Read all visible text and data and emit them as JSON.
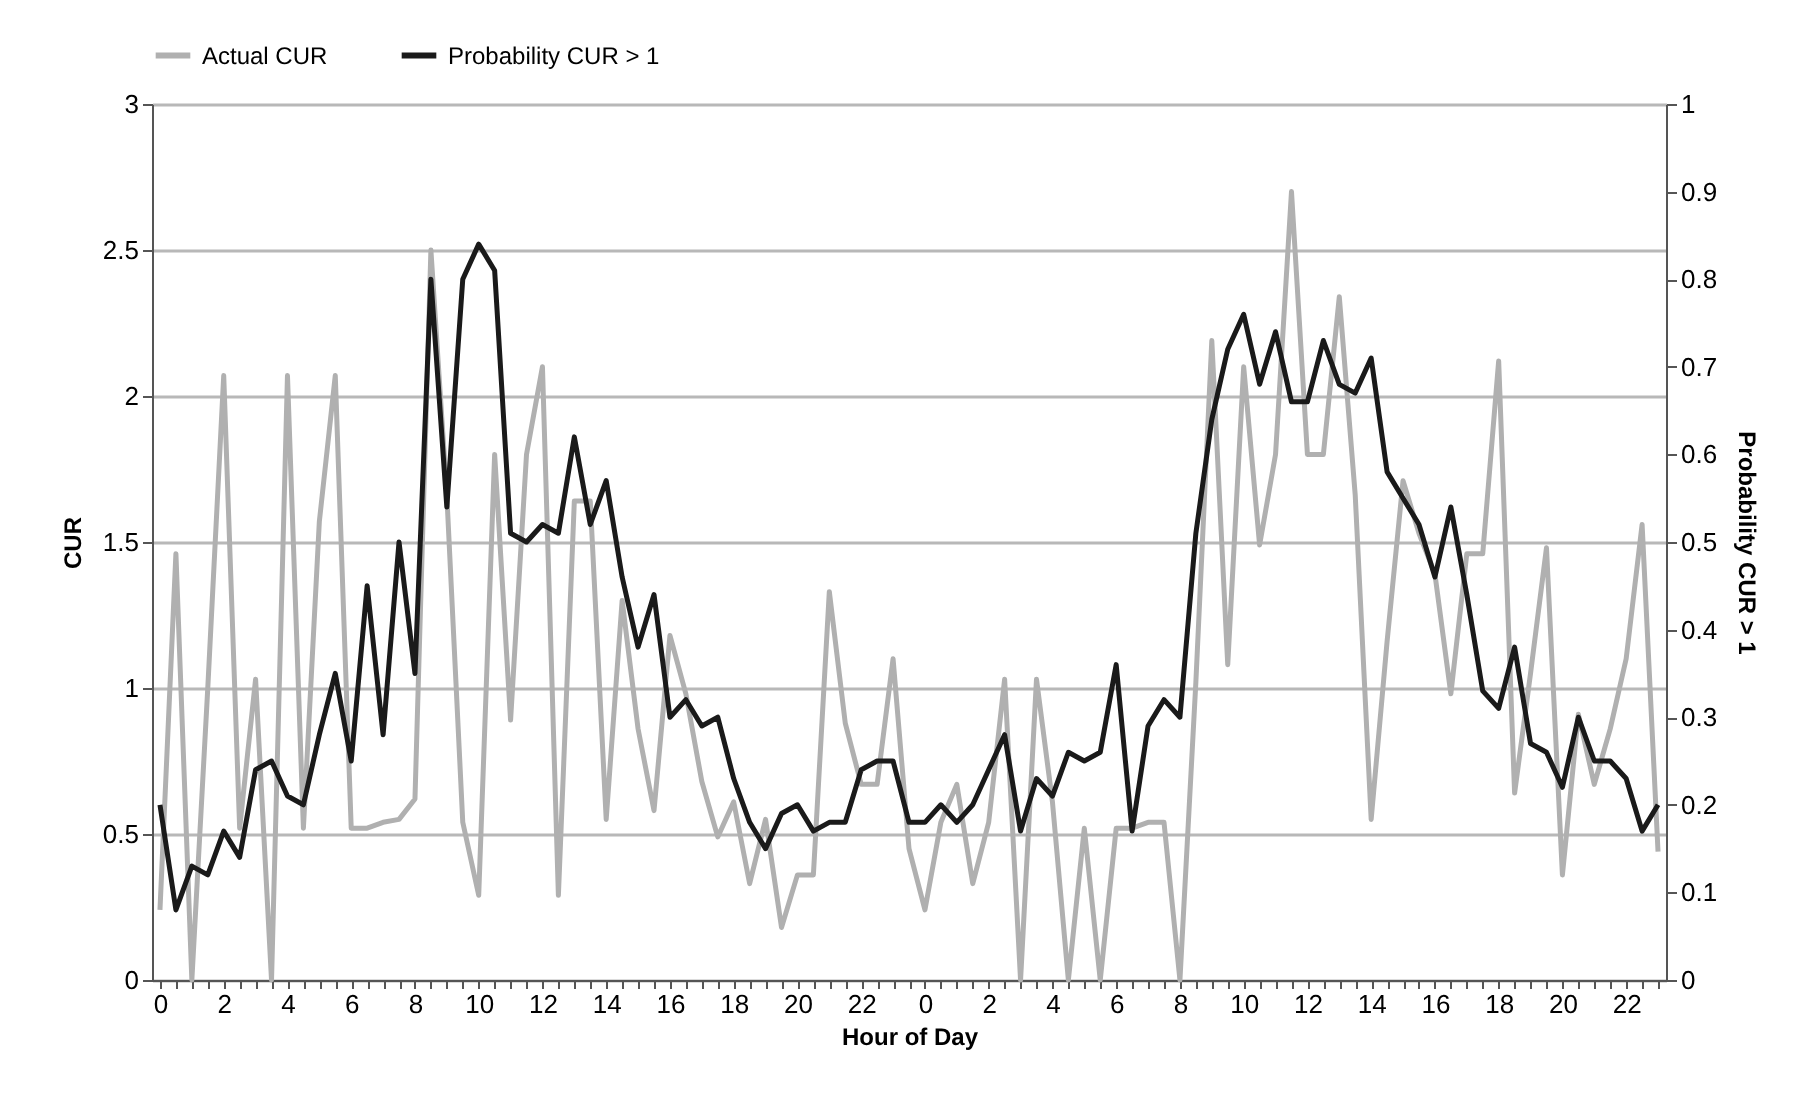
{
  "chart_data": {
    "type": "line",
    "xlabel": "Hour of Day",
    "ylabel": "CUR",
    "y2label": "Probability CUR > 1",
    "categories": [
      "0",
      null,
      null,
      null,
      "2",
      null,
      null,
      null,
      "4",
      null,
      null,
      null,
      "6",
      null,
      null,
      null,
      "8",
      null,
      null,
      null,
      "10",
      null,
      null,
      null,
      "12",
      null,
      null,
      null,
      "14",
      null,
      null,
      null,
      "16",
      null,
      null,
      null,
      "18",
      null,
      null,
      null,
      "20",
      null,
      null,
      null,
      "22",
      null,
      null,
      null,
      "0",
      null,
      null,
      null,
      "2",
      null,
      null,
      null,
      "4",
      null,
      null,
      null,
      "6",
      null,
      null,
      null,
      "8",
      null,
      null,
      null,
      "10",
      null,
      null,
      null,
      "12",
      null,
      null,
      null,
      "14",
      null,
      null,
      null,
      "16",
      null,
      null,
      null,
      "18",
      null,
      null,
      null,
      "20",
      null,
      null,
      null,
      "22",
      null,
      null
    ],
    "series": [
      {
        "name": "Actual CUR",
        "color": "#b0b0b0",
        "values": [
          0.24,
          1.46,
          0.0,
          1.0,
          2.07,
          0.52,
          1.03,
          0.0,
          2.07,
          0.52,
          1.57,
          2.07,
          0.52,
          0.52,
          0.54,
          0.55,
          0.62,
          2.5,
          1.66,
          0.54,
          0.29,
          1.8,
          0.89,
          1.8,
          2.1,
          0.29,
          1.64,
          1.64,
          0.55,
          1.3,
          0.86,
          0.58,
          1.18,
          0.98,
          0.68,
          0.49,
          0.61,
          0.33,
          0.55,
          0.18,
          0.36,
          0.36,
          1.33,
          0.88,
          0.67,
          0.67,
          1.1,
          0.45,
          0.24,
          0.54,
          0.67,
          0.33,
          0.54,
          1.03,
          0.0,
          1.03,
          0.61,
          0.0,
          0.52,
          0.0,
          0.52,
          0.52,
          0.54,
          0.54,
          0.0,
          1.02,
          2.19,
          1.08,
          2.1,
          1.49,
          1.8,
          2.7,
          1.8,
          1.8,
          2.34,
          1.66,
          0.55,
          1.16,
          1.71,
          1.53,
          1.39,
          0.98,
          1.46,
          1.46,
          2.12,
          0.64,
          1.05,
          1.48,
          0.36,
          0.91,
          0.67,
          0.86,
          1.1,
          1.56,
          0.44
        ]
      },
      {
        "name": "Probability CUR > 1",
        "color": "#1a1a1a",
        "axis": "y2",
        "values": [
          0.2,
          0.08,
          0.13,
          0.12,
          0.17,
          0.14,
          0.24,
          0.25,
          0.21,
          0.2,
          0.28,
          0.35,
          0.25,
          0.45,
          0.28,
          0.5,
          0.35,
          0.8,
          0.54,
          0.8,
          0.84,
          0.81,
          0.51,
          0.5,
          0.52,
          0.51,
          0.62,
          0.52,
          0.57,
          0.46,
          0.38,
          0.44,
          0.3,
          0.32,
          0.29,
          0.3,
          0.23,
          0.18,
          0.15,
          0.19,
          0.2,
          0.17,
          0.18,
          0.18,
          0.24,
          0.25,
          0.25,
          0.18,
          0.18,
          0.2,
          0.18,
          0.2,
          0.24,
          0.28,
          0.17,
          0.23,
          0.21,
          0.26,
          0.25,
          0.26,
          0.36,
          0.17,
          0.29,
          0.32,
          0.3,
          0.51,
          0.64,
          0.72,
          0.76,
          0.68,
          0.74,
          0.66,
          0.66,
          0.73,
          0.68,
          0.67,
          0.71,
          0.58,
          0.55,
          0.52,
          0.46,
          0.54,
          0.44,
          0.33,
          0.31,
          0.38,
          0.27,
          0.26,
          0.22,
          0.3,
          0.25,
          0.25,
          0.23,
          0.17,
          0.2
        ]
      }
    ],
    "ylim": [
      0,
      3
    ],
    "yticks": [
      0,
      0.5,
      1,
      1.5,
      2,
      2.5,
      3
    ],
    "y2lim": [
      0,
      1
    ],
    "y2ticks": [
      0,
      0.1,
      0.2,
      0.3,
      0.4,
      0.5,
      0.6,
      0.7,
      0.8,
      0.9,
      1
    ],
    "grid": "y",
    "legend": "top",
    "marker": "none",
    "line_style": "solid"
  }
}
